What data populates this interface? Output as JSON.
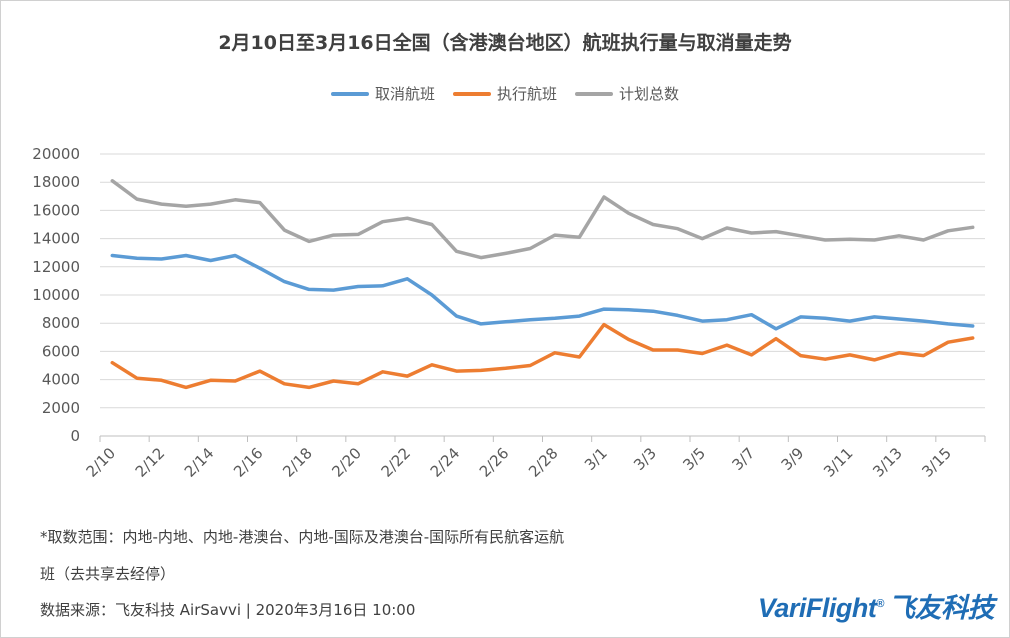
{
  "chart_data": {
    "type": "line",
    "title": "2月10日至3月16日全国（含港澳台地区）航班执行量与取消量走势",
    "ylim": [
      0,
      20000
    ],
    "y_ticks": [
      0,
      2000,
      4000,
      6000,
      8000,
      10000,
      12000,
      14000,
      16000,
      18000,
      20000
    ],
    "x": [
      "2/10",
      "2/11",
      "2/12",
      "2/13",
      "2/14",
      "2/15",
      "2/16",
      "2/17",
      "2/18",
      "2/19",
      "2/20",
      "2/21",
      "2/22",
      "2/23",
      "2/24",
      "2/25",
      "2/26",
      "2/27",
      "2/28",
      "2/29",
      "3/1",
      "3/2",
      "3/3",
      "3/4",
      "3/5",
      "3/6",
      "3/7",
      "3/8",
      "3/9",
      "3/10",
      "3/11",
      "3/12",
      "3/13",
      "3/14",
      "3/15",
      "3/16"
    ],
    "x_tick_labels": [
      "2/10",
      "2/12",
      "2/14",
      "2/16",
      "2/18",
      "2/20",
      "2/22",
      "2/24",
      "2/26",
      "2/28",
      "3/1",
      "3/3",
      "3/5",
      "3/7",
      "3/9",
      "3/11",
      "3/13",
      "3/15"
    ],
    "grid": true,
    "legend_position": "top",
    "series": [
      {
        "name": "取消航班",
        "color": "#5b9bd5",
        "values": [
          12800,
          12600,
          12550,
          12800,
          12450,
          12800,
          11900,
          10950,
          10400,
          10350,
          10600,
          10650,
          11150,
          10000,
          8500,
          7950,
          8100,
          8250,
          8350,
          8500,
          9000,
          8950,
          8850,
          8550,
          8150,
          8250,
          8600,
          7600,
          8450,
          8350,
          8150,
          8450,
          8300,
          8150,
          7950,
          7800
        ]
      },
      {
        "name": "执行航班",
        "color": "#ed7d31",
        "values": [
          5200,
          4100,
          3950,
          3450,
          3950,
          3900,
          4600,
          3700,
          3450,
          3900,
          3700,
          4550,
          4250,
          5050,
          4600,
          4650,
          4800,
          5000,
          5900,
          5600,
          7900,
          6850,
          6100,
          6100,
          5850,
          6450,
          5750,
          6900,
          5700,
          5450,
          5750,
          5400,
          5900,
          5700,
          6650,
          6950
        ]
      },
      {
        "name": "计划总数",
        "color": "#a5a5a5",
        "values": [
          18100,
          16800,
          16450,
          16300,
          16450,
          16750,
          16550,
          14600,
          13800,
          14250,
          14300,
          15200,
          15450,
          15000,
          13100,
          12650,
          12950,
          13300,
          14250,
          14100,
          16950,
          15800,
          15000,
          14700,
          14000,
          14750,
          14400,
          14500,
          14200,
          13900,
          13950,
          13900,
          14200,
          13900,
          14550,
          14800
        ]
      }
    ]
  },
  "footer": {
    "note_line1": "*取数范围：内地-内地、内地-港澳台、内地-国际及港澳台-国际所有民航客运航",
    "note_line2": "班（去共享去经停）",
    "source": "数据来源：飞友科技 AirSavvi  |  2020年3月16日 10:00"
  },
  "logo": {
    "text": "VariFlight",
    "mark": "®",
    "cn": "飞友科技"
  }
}
